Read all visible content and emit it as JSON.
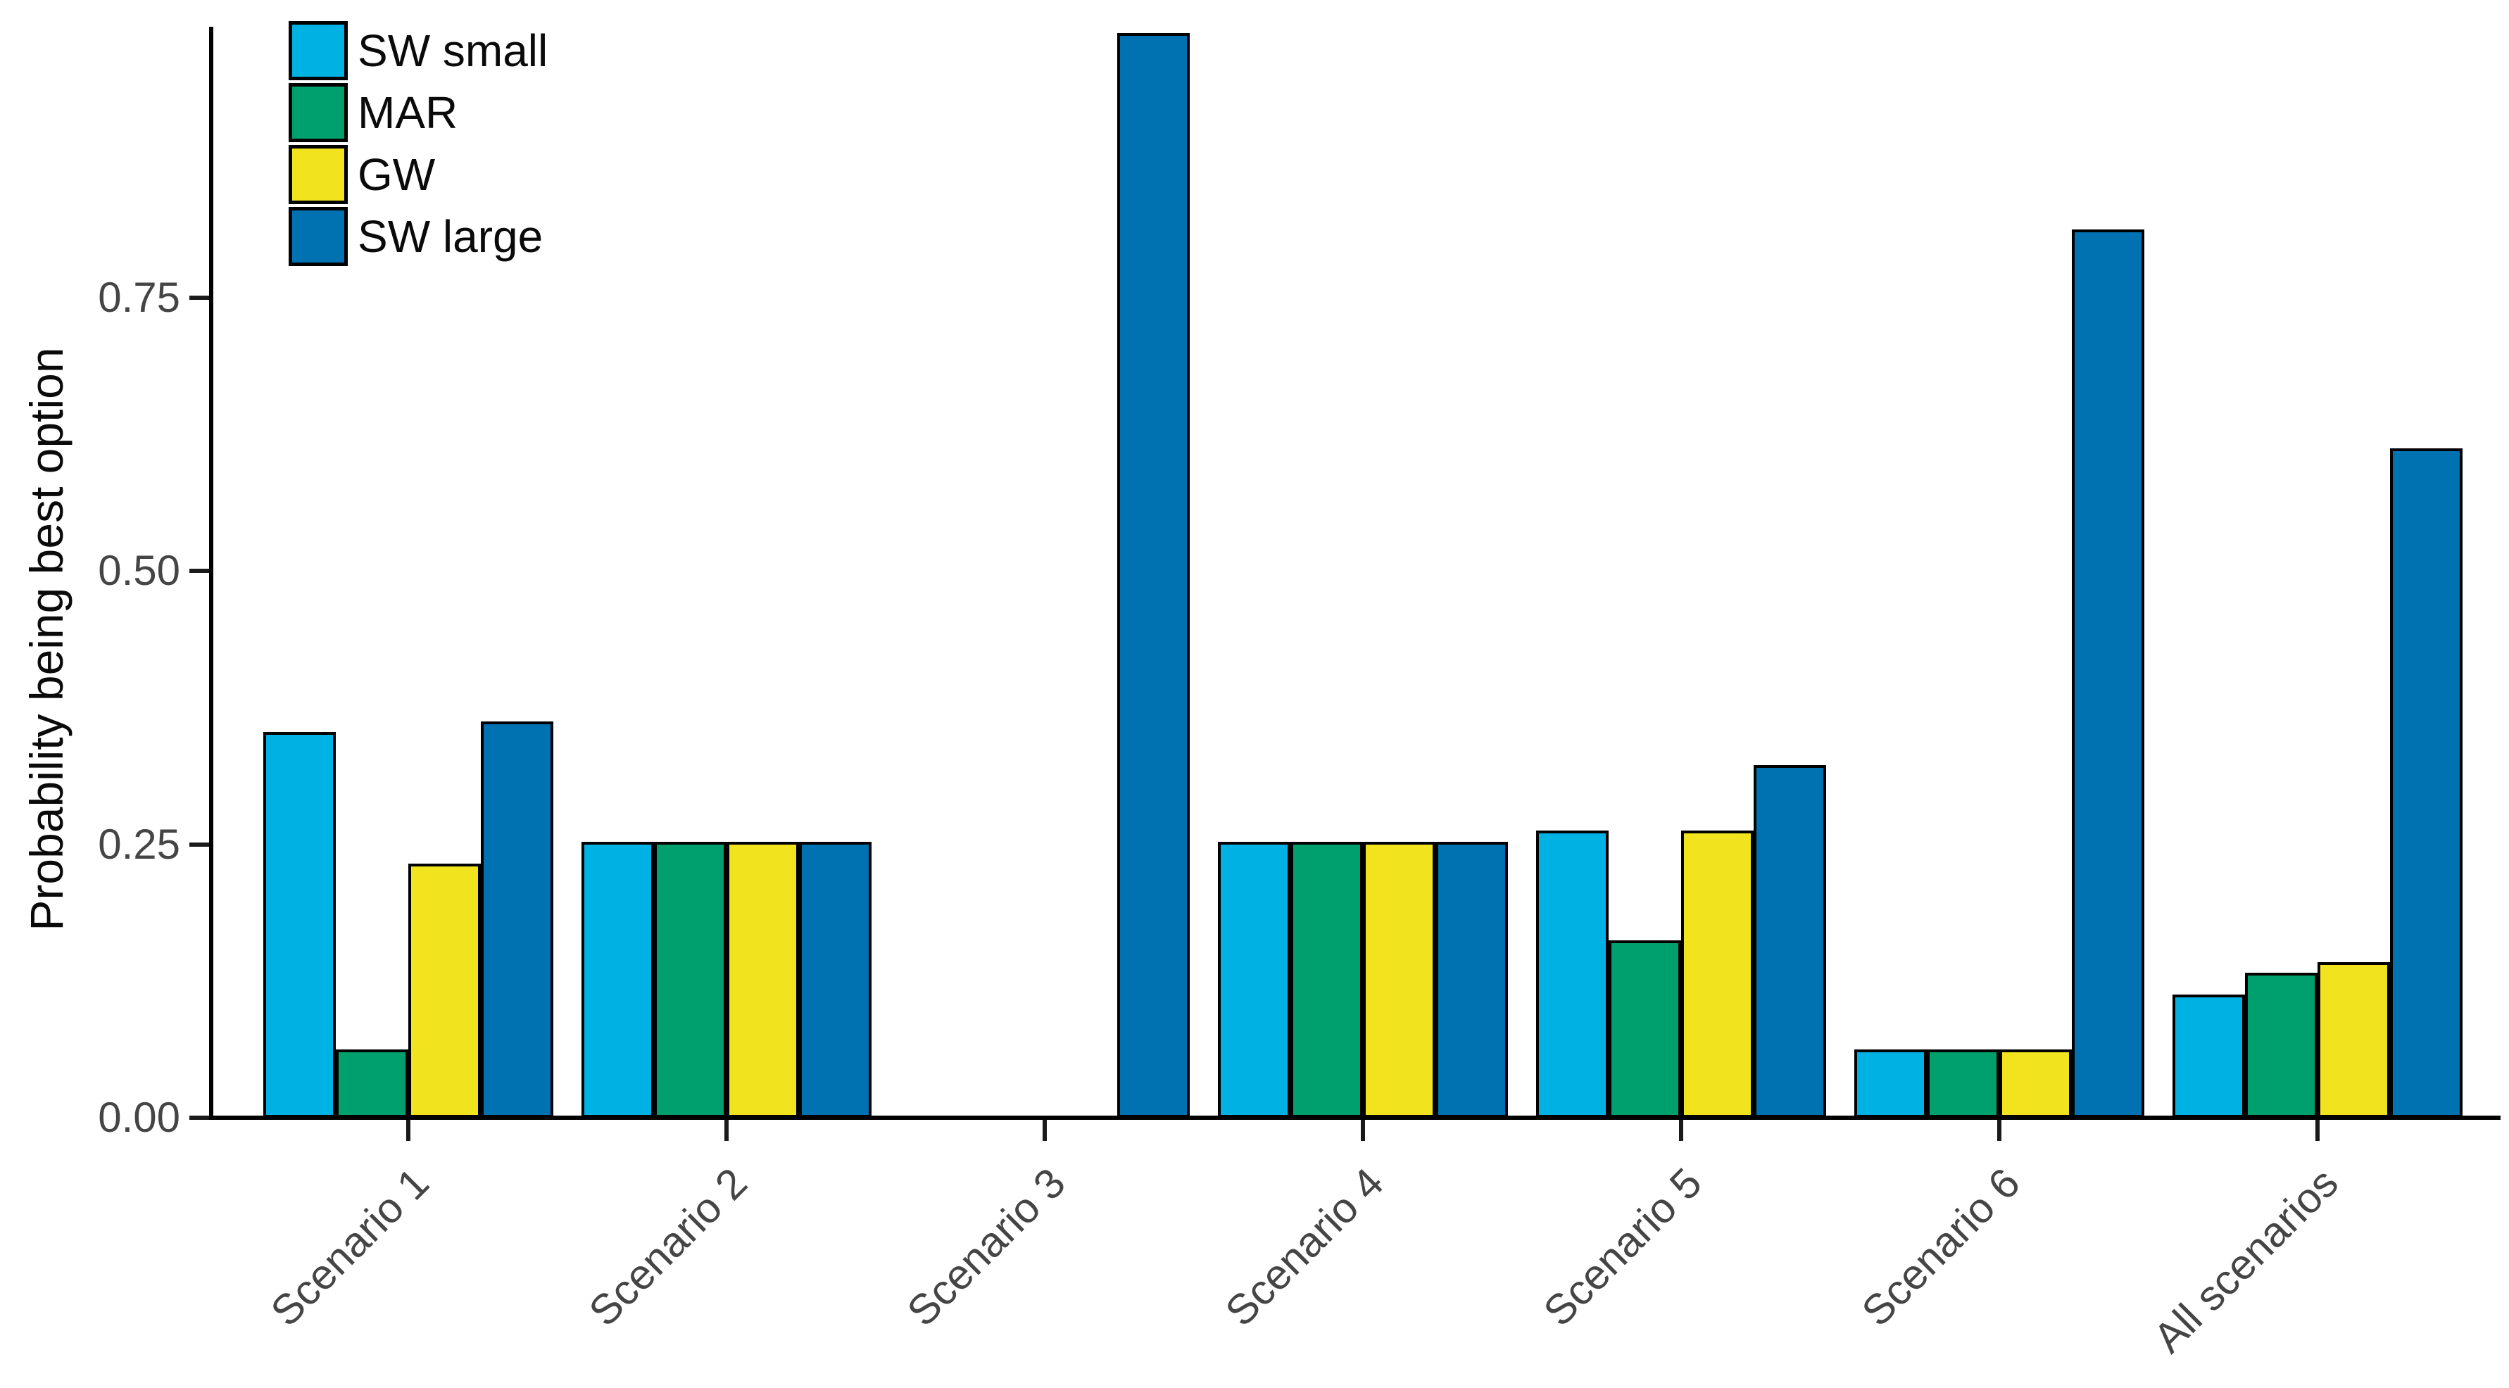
{
  "chart_data": {
    "type": "bar",
    "title": "",
    "xlabel": "",
    "ylabel": "Probability being best option",
    "categories": [
      "Scenario 1",
      "Scenario 2",
      "Scenario 3",
      "Scenario 4",
      "Scenario 5",
      "Scenario 6",
      "All scenarios"
    ],
    "series": [
      {
        "name": "SW small",
        "color": "#00B2E3",
        "values": [
          0.35,
          0.25,
          0.0,
          0.25,
          0.26,
          0.06,
          0.11
        ]
      },
      {
        "name": "MAR",
        "color": "#00A06E",
        "values": [
          0.06,
          0.25,
          0.0,
          0.25,
          0.16,
          0.06,
          0.13
        ]
      },
      {
        "name": "GW",
        "color": "#F1E41F",
        "values": [
          0.23,
          0.25,
          0.0,
          0.25,
          0.26,
          0.06,
          0.14
        ]
      },
      {
        "name": "SW large",
        "color": "#0072B2",
        "values": [
          0.36,
          0.25,
          0.99,
          0.25,
          0.32,
          0.81,
          0.61
        ]
      }
    ],
    "y_ticks": [
      0.0,
      0.25,
      0.5,
      0.75
    ],
    "y_tick_labels": [
      "0.00",
      "0.25",
      "0.50",
      "0.75"
    ],
    "ylim": [
      0,
      1.0
    ],
    "grid": false,
    "legend_position": "top-left",
    "bar_outline_color": "#000000",
    "axis_color": "#000000",
    "tick_label_color": "#454545"
  }
}
